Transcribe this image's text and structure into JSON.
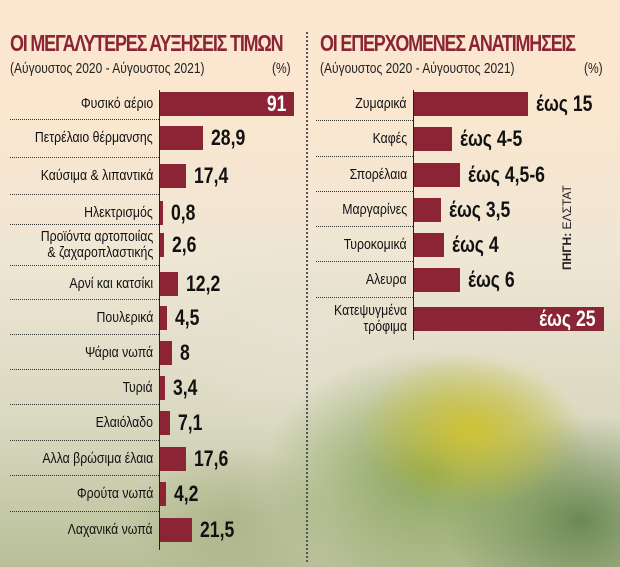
{
  "left": {
    "title": "ΟΙ ΜΕΓΑΛΥΤΕΡΕΣ ΑΥΞΗΣΕΙΣ ΤΙΜΩΝ",
    "subtitle": "(Αύγουστος 2020 - Αύγουστος 2021)",
    "unit": "(%)"
  },
  "right": {
    "title": "ΟΙ ΕΠΕΡΧΟΜΕΝΕΣ ΑΝΑΤΙΜΗΣΕΙΣ",
    "subtitle": "(Αύγουστος 2020 - Αύγουστος 2021)",
    "unit": "(%)"
  },
  "source": {
    "label": "ΠΗΓΗ:",
    "value": "ΕΛΣΤΑΤ"
  },
  "colors": {
    "bar": "#8b2535",
    "title": "#8b2535"
  },
  "chart_data": [
    {
      "type": "bar",
      "orientation": "horizontal",
      "title": "ΟΙ ΜΕΓΑΛΥΤΕΡΕΣ ΑΥΞΗΣΕΙΣ ΤΙΜΩΝ",
      "subtitle": "(Αύγουστος 2020 - Αύγουστος 2021)",
      "unit": "%",
      "categories": [
        "Φυσικό αέριο",
        "Πετρέλαιο θέρμανσης",
        "Καύσιμα & λιπαντικά",
        "Ηλεκτρισμός",
        "Προϊόντα αρτοποιίας\n& ζαχαροπλαστικής",
        "Αρνί και κατσίκι",
        "Πουλερικά",
        "Ψάρια νωπά",
        "Τυριά",
        "Ελαιόλαδο",
        "Αλλα βρώσιμα έλαια",
        "Φρούτα νωπά",
        "Λαχανικά νωπά"
      ],
      "values": [
        91,
        28.9,
        17.4,
        0.8,
        2.6,
        12.2,
        4.5,
        8,
        3.4,
        7.1,
        17.6,
        4.2,
        21.5
      ],
      "labels": [
        "91",
        "28,9",
        "17,4",
        "0,8",
        "2,6",
        "12,2",
        "4,5",
        "8",
        "3,4",
        "7,1",
        "17,6",
        "4,2",
        "21,5"
      ],
      "xlim": [
        0,
        91
      ]
    },
    {
      "type": "bar",
      "orientation": "horizontal",
      "title": "ΟΙ ΕΠΕΡΧΟΜΕΝΕΣ ΑΝΑΤΙΜΗΣΕΙΣ",
      "subtitle": "(Αύγουστος 2020 - Αύγουστος 2021)",
      "unit": "%",
      "categories": [
        "Ζυμαρικά",
        "Καφές",
        "Σπορέλαια",
        "Μαργαρίνες",
        "Τυροκομικά",
        "Αλευρα",
        "Κατεψυγμένα\nτρόφιμα"
      ],
      "values": [
        15,
        5,
        6,
        3.5,
        4,
        6,
        25
      ],
      "labels": [
        "έως 15",
        "έως 4-5",
        "έως 4,5-6",
        "έως 3,5",
        "έως 4",
        "έως 6",
        "έως 25"
      ],
      "xlim": [
        0,
        25
      ]
    }
  ]
}
